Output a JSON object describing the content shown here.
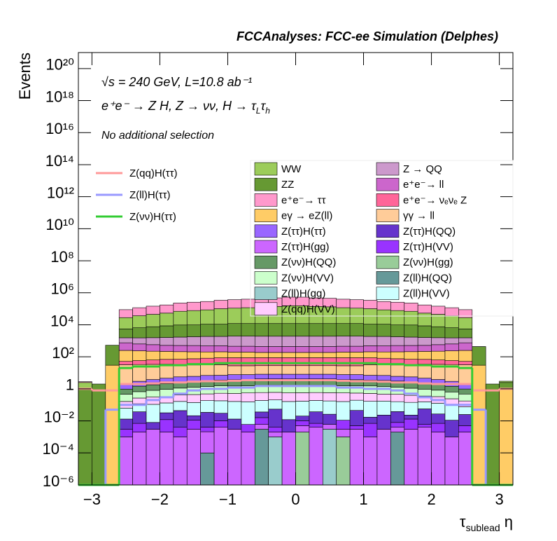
{
  "chart_data": {
    "type": "histogram",
    "title": "FCCAnalyses: FCC-ee Simulation (Delphes)",
    "y_label": "Events",
    "x_label": [
      "τ",
      "sublead",
      " η"
    ],
    "energy": "√s = 240 GeV, L=10.8 ab⁻¹",
    "process": [
      "e⁺e⁻ → Z H, Z → νν, H → τ",
      "L",
      "τ",
      "h"
    ],
    "selection": "No additional selection",
    "log_y": true,
    "stacked": true,
    "bins": [
      -3.2,
      -3,
      -2.8,
      -2.6,
      -2.4,
      -2.2,
      -2,
      -1.8,
      -1.6,
      -1.4,
      -1.2,
      -1,
      -0.8,
      -0.6,
      -0.4,
      -0.2,
      0,
      0.2,
      0.4,
      0.6,
      0.8,
      1,
      1.2,
      1.4,
      1.6,
      1.8,
      2,
      2.2,
      2.4,
      2.6,
      2.8,
      3,
      3.2
    ],
    "xlim": [
      -3.2,
      3.2
    ],
    "xticks": [
      {
        "value": -3,
        "label": "−3"
      },
      {
        "value": -2,
        "label": "−2"
      },
      {
        "value": -1,
        "label": "−1"
      },
      0,
      1,
      2,
      3
    ],
    "ylim": [
      1e-06,
      1e+21
    ],
    "yticks": [
      {
        "value": 1e-06,
        "label": "10⁻⁶"
      },
      {
        "value": 0.0001,
        "label": "10⁻⁴"
      },
      {
        "value": 0.01,
        "label": "10⁻²"
      },
      1,
      {
        "value": 100.0,
        "label": "10²"
      },
      {
        "value": 10000.0,
        "label": "10⁴"
      },
      {
        "value": 1000000.0,
        "label": "10⁶"
      },
      {
        "value": 100000000.0,
        "label": "10⁸"
      },
      {
        "value": 10000000000.0,
        "label": "10¹⁰"
      },
      {
        "value": 1000000000000.0,
        "label": "10¹²"
      },
      {
        "value": 100000000000000.0,
        "label": "10¹⁴"
      },
      {
        "value": 1e+16,
        "label": "10¹⁶"
      },
      {
        "value": 1e+18,
        "label": "10¹⁸"
      },
      {
        "value": 1e+20,
        "label": "10²⁰"
      }
    ],
    "series": [
      {
        "name": "WW",
        "color": "#9ccc5a",
        "style": "fill",
        "values": [
          1.5,
          0,
          0,
          22500,
          30000,
          37500,
          45000,
          60000,
          67500,
          75000,
          90000,
          97500,
          105000,
          120000,
          127500,
          142500,
          142500,
          127500,
          120000,
          105000,
          97500,
          90000,
          75000,
          67500,
          60000,
          45000,
          37500,
          30000,
          22500,
          0,
          0,
          0.5
        ]
      },
      {
        "name": "Z → QQ",
        "color": "#cc99cc",
        "style": "fill",
        "values": [
          0,
          0,
          0,
          800,
          900,
          1000,
          1100,
          1200,
          1300,
          1400,
          1400,
          1500,
          1500,
          1500,
          1500,
          1500,
          1500,
          1500,
          1500,
          1500,
          1500,
          1400,
          1400,
          1300,
          1200,
          1100,
          1000,
          900,
          800,
          0,
          0,
          0
        ]
      },
      {
        "name": "ZZ",
        "color": "#669933",
        "style": "fill",
        "values": [
          1,
          2,
          500,
          4000,
          5000,
          6000,
          7000,
          8000,
          8000,
          9000,
          9000,
          10000,
          10000,
          10000,
          10000,
          10000,
          10000,
          10000,
          10000,
          10000,
          10000,
          9000,
          9000,
          8000,
          8000,
          7000,
          6000,
          5000,
          4000,
          400,
          2,
          1.5
        ]
      },
      {
        "name": "e⁺e⁻→ ll",
        "color": "#cc66cc",
        "style": "fill",
        "values": [
          0,
          0,
          0,
          500,
          400,
          350,
          300,
          300,
          300,
          280,
          280,
          260,
          260,
          250,
          250,
          250,
          250,
          250,
          250,
          260,
          260,
          280,
          280,
          300,
          300,
          300,
          350,
          400,
          500,
          0,
          0,
          0
        ]
      },
      {
        "name": "e⁺e⁻→ ττ",
        "color": "#ff99cc",
        "style": "fill",
        "values": [
          0.3,
          0,
          0,
          60000,
          80000,
          100000,
          120000,
          160000,
          180000,
          200000,
          240000,
          260000,
          280000,
          320000,
          340000,
          380000,
          380000,
          340000,
          320000,
          280000,
          260000,
          240000,
          200000,
          180000,
          160000,
          120000,
          100000,
          80000,
          60000,
          5,
          0,
          0
        ]
      },
      {
        "name": "e⁺e⁻→ νₑνₑ Z",
        "color": "#ff6699",
        "style": "fill",
        "values": [
          0,
          0,
          0,
          20,
          25,
          30,
          35,
          40,
          45,
          50,
          55,
          60,
          60,
          60,
          60,
          60,
          60,
          60,
          60,
          60,
          60,
          55,
          50,
          45,
          40,
          35,
          30,
          25,
          20,
          0,
          0,
          0
        ]
      },
      {
        "name": "eγ → eZ(ll)",
        "color": "#ffcc66",
        "style": "fill",
        "values": [
          0,
          0,
          30,
          200,
          180,
          160,
          150,
          140,
          130,
          120,
          120,
          110,
          110,
          100,
          100,
          100,
          100,
          100,
          100,
          110,
          110,
          120,
          120,
          130,
          140,
          150,
          160,
          180,
          200,
          30,
          0,
          1
        ]
      },
      {
        "name": "γγ → ll",
        "color": "#ffcc99",
        "style": "fill",
        "values": [
          0,
          0,
          0,
          30,
          30,
          30,
          30,
          25,
          25,
          25,
          25,
          20,
          20,
          20,
          20,
          20,
          20,
          20,
          20,
          20,
          20,
          25,
          25,
          25,
          25,
          30,
          30,
          30,
          30,
          0,
          0,
          0
        ]
      },
      {
        "name": "Z(ττ)H(ττ)",
        "color": "#9966ff",
        "style": "fill",
        "values": [
          0,
          0,
          0,
          1,
          1.5,
          2,
          2.5,
          3,
          3,
          3.5,
          3.5,
          4,
          4,
          4,
          4,
          4,
          4,
          4,
          4,
          4,
          4,
          3.5,
          3.5,
          3,
          3,
          2.5,
          2,
          1.5,
          1,
          0,
          0,
          0
        ]
      },
      {
        "name": "Z(ττ)H(QQ)",
        "color": "#6633cc",
        "style": "fill",
        "values": [
          0,
          0,
          0,
          0.01,
          0.03,
          0.005,
          0.02,
          0.04,
          0.01,
          0.03,
          0.02,
          0.01,
          0,
          0.02,
          0.05,
          0.01,
          0.01,
          0.03,
          0.02,
          0,
          0.04,
          0.01,
          0.02,
          0.03,
          0.01,
          0.05,
          0.02,
          0.01,
          0.02,
          0,
          0,
          0
        ]
      },
      {
        "name": "Z(ττ)H(gg)",
        "color": "#cc66ff",
        "style": "fill",
        "values": [
          0,
          0,
          0,
          0.001,
          0.002,
          0.003,
          0.002,
          0.001,
          0.003,
          0.002,
          0.004,
          0.003,
          0.002,
          0.003,
          0.001,
          0.002,
          0.003,
          0.004,
          0.003,
          0.002,
          0.003,
          0.001,
          0.003,
          0.002,
          0.003,
          0.004,
          0.002,
          0.001,
          0.002,
          0,
          0,
          0
        ]
      },
      {
        "name": "Z(ττ)H(VV)",
        "color": "#9933ff",
        "style": "fill",
        "values": [
          0,
          0,
          0,
          0.002,
          0.005,
          0,
          0.01,
          0.003,
          0.008,
          0.002,
          0.006,
          0,
          0.004,
          0.01,
          0.002,
          0,
          0.005,
          0.003,
          0,
          0.008,
          0.002,
          0.006,
          0,
          0.004,
          0.01,
          0.002,
          0.005,
          0,
          0.003,
          0,
          0,
          0
        ]
      },
      {
        "name": "Z(νν)H(QQ)",
        "color": "#669966",
        "style": "fill",
        "values": [
          0,
          0,
          0,
          0.5,
          0.8,
          1,
          1.2,
          1.5,
          1.8,
          2,
          2,
          2.2,
          2.2,
          2.5,
          2.5,
          2.5,
          2.5,
          2.5,
          2.5,
          2.2,
          2.2,
          2,
          2,
          1.8,
          1.5,
          1.2,
          1,
          0.8,
          0.5,
          0,
          0,
          0
        ]
      },
      {
        "name": "Z(νν)H(gg)",
        "color": "#99cc99",
        "style": "fill",
        "values": [
          0,
          0,
          0,
          0,
          0,
          0,
          0,
          0,
          0,
          0,
          0,
          0,
          0,
          0,
          0,
          0,
          0.002,
          0,
          0,
          0.001,
          0,
          0,
          0,
          0,
          0,
          0,
          0,
          0,
          0,
          0,
          0,
          0
        ]
      },
      {
        "name": "Z(νν)H(VV)",
        "color": "#ccffcc",
        "style": "fill",
        "values": [
          0,
          0,
          0,
          0.3,
          0.4,
          0.5,
          0.6,
          0.7,
          0.8,
          0.9,
          1,
          1,
          1,
          1.1,
          1.1,
          1.1,
          1.1,
          1.1,
          1.1,
          1,
          1,
          1,
          0.9,
          0.8,
          0.7,
          0.6,
          0.5,
          0.4,
          0.3,
          0,
          0,
          0
        ]
      },
      {
        "name": "Z(ll)H(QQ)",
        "color": "#669999",
        "style": "fill",
        "values": [
          0,
          0,
          0,
          0,
          0,
          0,
          0,
          0,
          0,
          0.0001,
          0,
          0,
          0,
          0.003,
          0,
          0,
          0,
          0,
          0,
          0,
          0,
          0,
          0,
          0.002,
          0,
          0,
          0,
          0,
          0,
          0,
          0,
          0
        ]
      },
      {
        "name": "Z(ll)H(gg)",
        "color": "#99cccc",
        "style": "fill",
        "values": [
          0,
          0,
          0,
          0,
          0,
          0,
          0,
          0,
          0,
          0,
          0,
          0,
          0,
          0,
          0.001,
          0,
          0,
          0,
          0.003,
          0,
          0,
          0,
          0,
          0,
          0,
          0,
          0,
          0,
          0,
          0,
          0,
          0
        ]
      },
      {
        "name": "Z(ll)H(VV)",
        "color": "#ccffff",
        "style": "fill",
        "values": [
          0,
          0,
          0,
          0.05,
          0.08,
          0.1,
          0.1,
          0.12,
          0.12,
          0.15,
          0.15,
          0.15,
          0.15,
          0.15,
          0.15,
          0.15,
          0.15,
          0.15,
          0.15,
          0.15,
          0.15,
          0.15,
          0.15,
          0.12,
          0.12,
          0.1,
          0.1,
          0.08,
          0.05,
          0,
          0,
          0
        ]
      },
      {
        "name": "Z(qq)H(VV)",
        "color": "#ffccff",
        "style": "fill",
        "values": [
          0,
          0,
          0,
          0.1,
          0.15,
          0.2,
          0.2,
          0.25,
          0.3,
          0.3,
          0.35,
          0.35,
          0.4,
          0.4,
          0.4,
          0.4,
          0.4,
          0.4,
          0.4,
          0.4,
          0.35,
          0.35,
          0.3,
          0.3,
          0.25,
          0.2,
          0.2,
          0.15,
          0.1,
          0,
          0,
          0
        ]
      },
      {
        "name": "Z(qq)H(ττ)",
        "color": "#ff9999",
        "style": "line",
        "values": [
          1,
          0.8,
          0.8,
          2,
          2,
          2.2,
          2.5,
          2.5,
          2.8,
          3,
          3,
          3.2,
          3.5,
          3.5,
          3.5,
          3.5,
          3.5,
          3.5,
          3.5,
          3.2,
          3,
          3,
          2.8,
          2.5,
          2.5,
          2.2,
          2,
          2,
          2,
          0.8,
          0.8,
          1
        ]
      },
      {
        "name": "Z(ll)H(ττ)",
        "color": "#9999ff",
        "style": "line",
        "values": [
          0,
          0,
          0.05,
          0.1,
          0.1,
          0.2,
          0.3,
          0.5,
          0.8,
          1,
          1,
          1.2,
          1.2,
          1.5,
          1.5,
          1.5,
          1.5,
          1.5,
          1.5,
          1.2,
          1.2,
          1,
          1,
          0.8,
          0.5,
          0.3,
          0.2,
          0.1,
          0.1,
          0.05,
          0,
          0
        ]
      },
      {
        "name": "Z(νν)H(ττ)",
        "color": "#33cc33",
        "style": "line",
        "values": [
          0,
          0,
          0,
          20,
          25,
          25,
          30,
          30,
          35,
          35,
          40,
          40,
          40,
          40,
          40,
          40,
          40,
          40,
          40,
          40,
          40,
          40,
          35,
          35,
          30,
          30,
          25,
          25,
          20,
          0,
          0,
          0
        ]
      }
    ]
  }
}
